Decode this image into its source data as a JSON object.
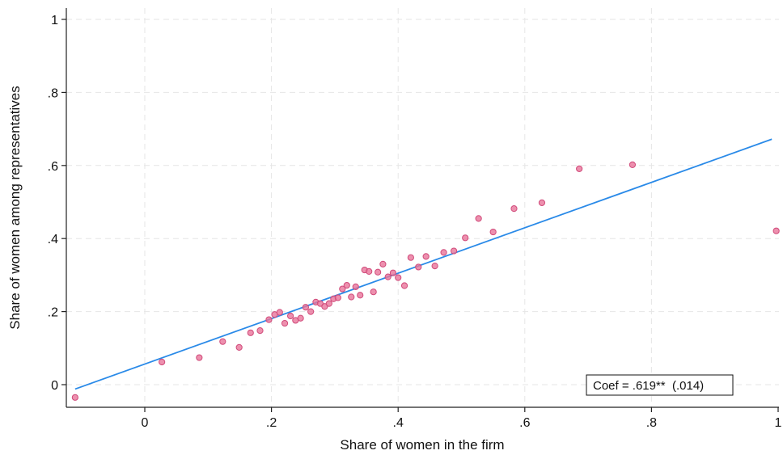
{
  "chart_data": {
    "type": "scatter",
    "title": "",
    "xlabel": "Share of women in the firm",
    "ylabel": "Share of women among representatives",
    "xlim": [
      -0.12,
      1.0
    ],
    "ylim": [
      -0.06,
      1.02
    ],
    "x_ticks": [
      {
        "value": 0,
        "label": "0"
      },
      {
        "value": 0.2,
        "label": ".2"
      },
      {
        "value": 0.4,
        "label": ".4"
      },
      {
        "value": 0.6,
        "label": ".6"
      },
      {
        "value": 0.8,
        "label": ".8"
      },
      {
        "value": 1.0,
        "label": "1"
      }
    ],
    "y_ticks": [
      {
        "value": 0,
        "label": "0"
      },
      {
        "value": 0.2,
        "label": ".2"
      },
      {
        "value": 0.4,
        "label": ".4"
      },
      {
        "value": 0.6,
        "label": ".6"
      },
      {
        "value": 0.8,
        "label": ".8"
      },
      {
        "value": 1.0,
        "label": "1"
      }
    ],
    "grid": true,
    "points": {
      "color": "#e8749a",
      "x": [
        -0.11,
        0.027,
        0.086,
        0.123,
        0.149,
        0.167,
        0.182,
        0.196,
        0.205,
        0.213,
        0.221,
        0.23,
        0.238,
        0.246,
        0.254,
        0.262,
        0.27,
        0.277,
        0.284,
        0.291,
        0.298,
        0.305,
        0.312,
        0.319,
        0.326,
        0.333,
        0.34,
        0.347,
        0.354,
        0.361,
        0.368,
        0.376,
        0.384,
        0.392,
        0.4,
        0.41,
        0.42,
        0.432,
        0.444,
        0.458,
        0.472,
        0.488,
        0.506,
        0.527,
        0.55,
        0.583,
        0.627,
        0.686,
        0.77,
        0.997
      ],
      "y": [
        -0.035,
        0.062,
        0.074,
        0.118,
        0.102,
        0.142,
        0.148,
        0.178,
        0.192,
        0.198,
        0.168,
        0.188,
        0.176,
        0.182,
        0.212,
        0.2,
        0.226,
        0.222,
        0.214,
        0.222,
        0.235,
        0.238,
        0.262,
        0.272,
        0.24,
        0.268,
        0.245,
        0.314,
        0.31,
        0.254,
        0.308,
        0.33,
        0.295,
        0.306,
        0.293,
        0.271,
        0.348,
        0.322,
        0.351,
        0.325,
        0.362,
        0.366,
        0.402,
        0.455,
        0.418,
        0.482,
        0.498,
        0.591,
        0.602,
        0.421
      ]
    },
    "fit_line": {
      "color": "#2a8ae8",
      "x": [
        -0.11,
        0.99
      ],
      "y": [
        -0.012,
        0.672
      ]
    },
    "annotation": {
      "text": "Coef = .619**  (.014)"
    }
  }
}
